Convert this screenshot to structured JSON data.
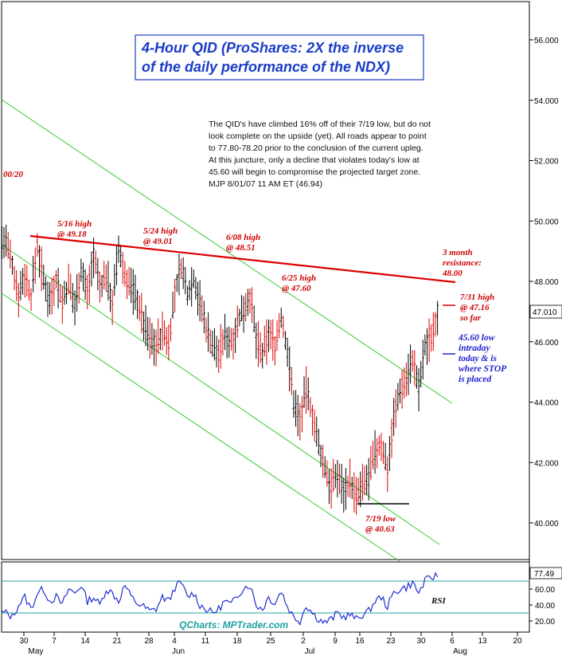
{
  "chart_data": {
    "type": "candlestick-ohlc",
    "title": [
      "4-Hour QID (ProShares: 2X the inverse",
      "of the daily performance of the NDX)"
    ],
    "commentary": [
      "The QID's have climbed 16% off of their 7/19 low, but do not",
      "look complete on the upside (yet). All roads appear to point",
      "to 77.80-78.20 prior to the conclusion of the current upleg.",
      "At this juncture, only a decline that violates today's low at",
      "45.60 will begin to compromise the projected target zone.",
      "MJP  8/01/07  11 AM ET (46.94)"
    ],
    "price_axis": {
      "ticks": [
        "56.000",
        "54.000",
        "52.000",
        "50.000",
        "48.000",
        "46.000",
        "44.000",
        "42.000",
        "40.000"
      ],
      "ylim": [
        38.7,
        56.9
      ],
      "last_price_label": "47.010",
      "last_price": 47.01
    },
    "rsi_axis": {
      "ticks": [
        "60.00",
        "40.00",
        "20.00"
      ],
      "last_label": "77.49",
      "last_value": 77.49,
      "label": "RSI",
      "ylim": [
        5,
        90
      ],
      "levels": [
        30,
        70
      ]
    },
    "x_axis": {
      "tick_labels": [
        "30",
        "7",
        "14",
        "21",
        "28",
        "4",
        "11",
        "18",
        "25",
        "2",
        "9",
        "16",
        "23",
        "30",
        "6",
        "13",
        "20"
      ],
      "month_labels": [
        "May",
        "Jun",
        "Jul",
        "Aug"
      ]
    },
    "left_edge_label": "00/20",
    "annotations": [
      {
        "lines": [
          "5/16 high",
          "@ 49.18"
        ],
        "color": "red"
      },
      {
        "lines": [
          "5/24 high",
          "@ 49.01"
        ],
        "color": "red"
      },
      {
        "lines": [
          "6/08 high",
          "@ 48.51"
        ],
        "color": "red"
      },
      {
        "lines": [
          "6/25 high",
          "@ 47.60"
        ],
        "color": "red"
      },
      {
        "lines": [
          "3 month",
          "resistance:",
          "48.00"
        ],
        "color": "red"
      },
      {
        "lines": [
          "7/31 high",
          "@ 47.16",
          "so far"
        ],
        "color": "red"
      },
      {
        "lines": [
          "45.60 low",
          "intraday",
          "today & is",
          "where STOP",
          "is placed"
        ],
        "color": "blue"
      },
      {
        "lines": [
          "7/19 low",
          "@ 40.63"
        ],
        "color": "red"
      }
    ],
    "watermark": "QCharts: MPTrader.com",
    "key_levels": {
      "resistance": 48.0,
      "low_7_19": 40.63,
      "stop": 45.6,
      "high_7_31": 47.16
    },
    "price_path": [
      49.3,
      48.5,
      47.6,
      48.2,
      47.5,
      49.2,
      48.0,
      47.4,
      48.1,
      47.3,
      47.9,
      47.2,
      48.4,
      47.6,
      48.9,
      47.8,
      48.2,
      47.3,
      49.0,
      48.2,
      47.8,
      47.4,
      46.6,
      46.1,
      45.9,
      46.3,
      46.0,
      47.6,
      48.5,
      47.6,
      48.1,
      47.3,
      46.5,
      45.9,
      45.6,
      46.2,
      46.0,
      46.6,
      47.1,
      47.5,
      46.1,
      45.5,
      46.3,
      45.9,
      46.8,
      45.7,
      44.0,
      43.4,
      44.4,
      43.6,
      42.5,
      41.8,
      41.2,
      41.6,
      41.1,
      41.4,
      40.8,
      41.2,
      41.5,
      42.3,
      42.6,
      41.8,
      43.5,
      44.4,
      44.8,
      45.4,
      44.4,
      45.8,
      46.2,
      47.0
    ],
    "rsi_path": [
      30,
      25,
      40,
      50,
      35,
      55,
      60,
      45,
      50,
      40,
      60,
      55,
      65,
      45,
      50,
      40,
      60,
      55,
      45,
      65,
      50,
      42,
      38,
      32,
      35,
      50,
      45,
      62,
      68,
      50,
      55,
      40,
      35,
      30,
      35,
      45,
      40,
      52,
      62,
      65,
      40,
      35,
      50,
      42,
      58,
      38,
      25,
      20,
      40,
      30,
      22,
      18,
      22,
      30,
      25,
      28,
      22,
      28,
      32,
      45,
      50,
      38,
      55,
      60,
      62,
      68,
      55,
      70,
      74,
      77.49
    ]
  }
}
